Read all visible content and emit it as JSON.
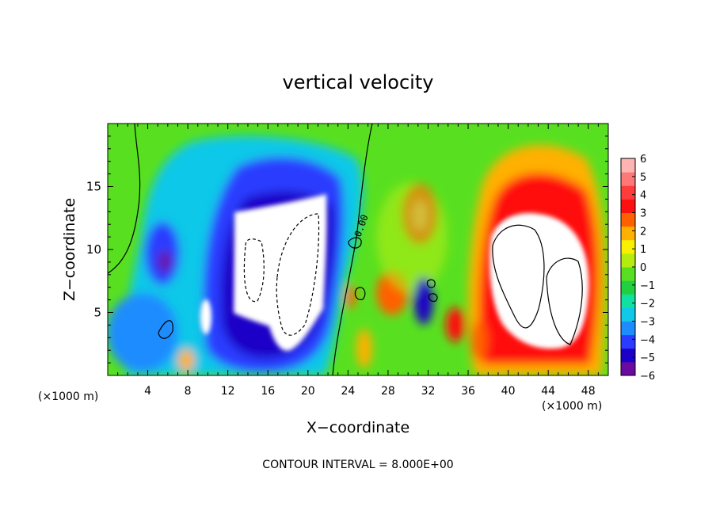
{
  "chart_data": {
    "type": "heatmap",
    "title": "vertical velocity",
    "xlabel": "X−coordinate",
    "ylabel": "Z−coordinate",
    "x_unit": "(×1000 m)",
    "xlim": [
      0,
      50
    ],
    "ylim": [
      0,
      20
    ],
    "x_ticks": [
      "4",
      "8",
      "12",
      "16",
      "20",
      "24",
      "28",
      "32",
      "36",
      "40",
      "44",
      "48"
    ],
    "y_ticks": [
      "5",
      "10",
      "15"
    ],
    "colorbar": {
      "ticks": [
        "6",
        "5",
        "4",
        "3",
        "2",
        "1",
        "0",
        "−1",
        "−2",
        "−3",
        "−4",
        "−5",
        "−6"
      ],
      "min": -6,
      "max": 6,
      "colors": [
        "#6a0aa0",
        "#1a00c8",
        "#2a3cff",
        "#1e8cff",
        "#10c8e8",
        "#10e0a0",
        "#20d040",
        "#58e020",
        "#b4ec10",
        "#f8f000",
        "#ffb000",
        "#ff6000",
        "#ff1010",
        "#ff3c3c",
        "#ff7878",
        "#ffb4b4"
      ]
    },
    "contour_label": "0.00",
    "features": [
      {
        "name": "downdraft core",
        "x": 17,
        "z": 9.5,
        "w": -9
      },
      {
        "name": "downdraft envelope",
        "x": 17,
        "z": 10,
        "w": -5
      },
      {
        "name": "updraft core",
        "x": 42.5,
        "z": 8,
        "w": 9
      },
      {
        "name": "updraft envelope",
        "x": 43,
        "z": 9,
        "w": 5
      },
      {
        "name": "updraft",
        "x": 30.5,
        "z": 12.5,
        "w": 4
      },
      {
        "name": "downdraft",
        "x": 5.5,
        "z": 9,
        "w": -5
      }
    ],
    "footer": "CONTOUR INTERVAL = 8.000E+00"
  }
}
